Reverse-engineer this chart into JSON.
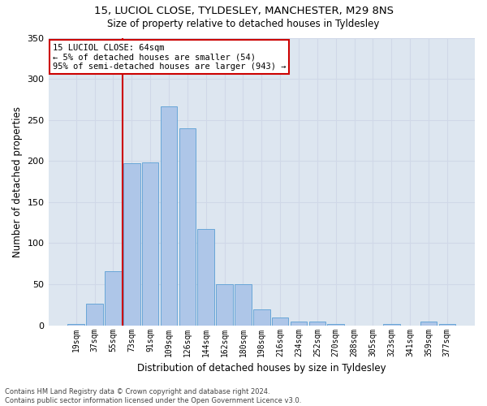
{
  "title1": "15, LUCIOL CLOSE, TYLDESLEY, MANCHESTER, M29 8NS",
  "title2": "Size of property relative to detached houses in Tyldesley",
  "xlabel": "Distribution of detached houses by size in Tyldesley",
  "ylabel": "Number of detached properties",
  "footnote1": "Contains HM Land Registry data © Crown copyright and database right 2024.",
  "footnote2": "Contains public sector information licensed under the Open Government Licence v3.0.",
  "annotation_title": "15 LUCIOL CLOSE: 64sqm",
  "annotation_line1": "← 5% of detached houses are smaller (54)",
  "annotation_line2": "95% of semi-detached houses are larger (943) →",
  "bar_labels": [
    "19sqm",
    "37sqm",
    "55sqm",
    "73sqm",
    "91sqm",
    "109sqm",
    "126sqm",
    "144sqm",
    "162sqm",
    "180sqm",
    "198sqm",
    "216sqm",
    "234sqm",
    "252sqm",
    "270sqm",
    "288sqm",
    "305sqm",
    "323sqm",
    "341sqm",
    "359sqm",
    "377sqm"
  ],
  "bar_values": [
    2,
    26,
    66,
    197,
    198,
    266,
    240,
    117,
    50,
    50,
    19,
    10,
    5,
    5,
    2,
    0,
    0,
    2,
    0,
    5,
    2
  ],
  "bar_color": "#aec6e8",
  "bar_edge_color": "#5a9fd4",
  "vline_x_index": 2,
  "vline_color": "#cc0000",
  "grid_color": "#d0d8e8",
  "background_color": "#dde6f0",
  "ylim": [
    0,
    350
  ],
  "yticks": [
    0,
    50,
    100,
    150,
    200,
    250,
    300,
    350
  ]
}
